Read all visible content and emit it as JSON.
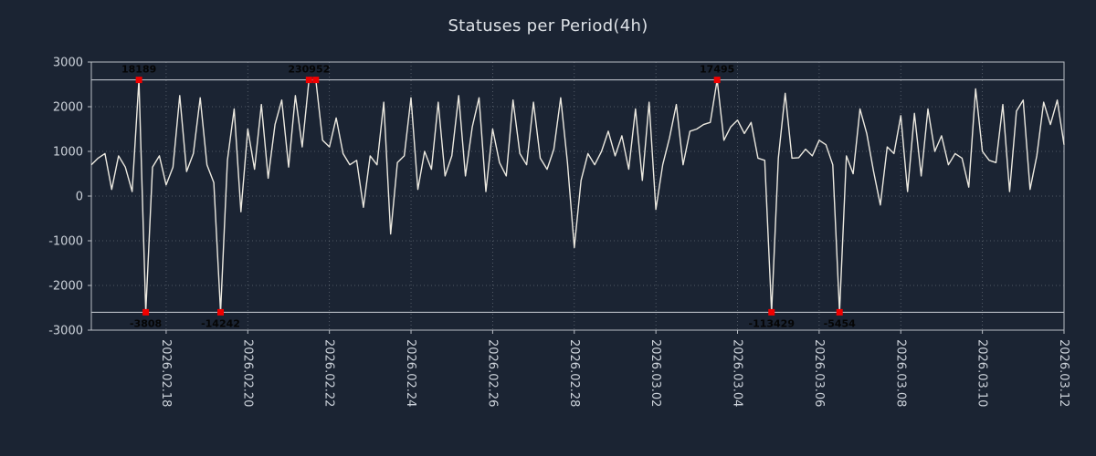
{
  "colors": {
    "background": "#1b2433",
    "line": "#ece9e0",
    "marker": "#f00000",
    "annotation_text": "#050505",
    "axis_text": "#ccd2da",
    "grid": "#9aa0a8",
    "frame": "#b9bec6"
  },
  "chart_data": {
    "type": "line",
    "title": "Statuses per Period(4h)",
    "x_start": "2026.02.16 04:00",
    "interval_hours": 4,
    "ylim": [
      -3000,
      3000
    ],
    "y_ticks": [
      3000,
      2000,
      1000,
      0,
      -1000,
      -2000,
      -3000
    ],
    "clip_value": 2600,
    "grid": "dotted",
    "x_tick_labels": [
      "2026.02.18",
      "2026.02.20",
      "2026.02.22",
      "2026.02.24",
      "2026.02.26",
      "2026.02.28",
      "2026.03.02",
      "2026.03.04",
      "2026.03.06",
      "2026.03.08",
      "2026.03.10",
      "2026.03.12"
    ],
    "x_tick_indices": [
      11,
      23,
      35,
      47,
      59,
      71,
      83,
      95,
      107,
      119,
      131,
      143
    ],
    "values": [
      700,
      850,
      950,
      150,
      900,
      650,
      100,
      2600,
      -2600,
      650,
      900,
      250,
      650,
      2250,
      550,
      950,
      2200,
      700,
      300,
      -2600,
      800,
      1950,
      -350,
      1500,
      600,
      2050,
      400,
      1600,
      2150,
      650,
      2250,
      1100,
      2600,
      2600,
      1250,
      1100,
      1750,
      950,
      700,
      800,
      -250,
      900,
      700,
      2100,
      -850,
      750,
      900,
      2200,
      150,
      1000,
      600,
      2100,
      450,
      900,
      2250,
      450,
      1550,
      2200,
      100,
      1500,
      750,
      450,
      2150,
      950,
      700,
      2100,
      850,
      600,
      1050,
      2200,
      750,
      -1150,
      350,
      950,
      700,
      1000,
      1450,
      900,
      1350,
      600,
      1950,
      350,
      2100,
      -300,
      700,
      1300,
      2050,
      700,
      1450,
      1500,
      1600,
      1650,
      2600,
      1250,
      1550,
      1700,
      1400,
      1650,
      850,
      800,
      -2600,
      850,
      2300,
      850,
      860,
      1050,
      900,
      1250,
      1150,
      700,
      -2600,
      900,
      500,
      1950,
      1400,
      550,
      -200,
      1100,
      950,
      1800,
      100,
      1850,
      450,
      1950,
      1000,
      1350,
      700,
      950,
      850,
      200,
      2400,
      1000,
      800,
      750,
      2050,
      100,
      1900,
      2150,
      150,
      900,
      2100,
      1600,
      2150,
      1150
    ],
    "annotations": [
      {
        "index": 7,
        "label": "18189",
        "value": 18189,
        "position": "top"
      },
      {
        "index": 8,
        "label": "-3808",
        "value": -3808,
        "position": "bottom"
      },
      {
        "index": 19,
        "label": "-14242",
        "value": -14242,
        "position": "bottom"
      },
      {
        "index": 32,
        "label": "230952",
        "value": 230952,
        "position": "top"
      },
      {
        "index": 33,
        "label": "",
        "value": null,
        "position": "top"
      },
      {
        "index": 92,
        "label": "17495",
        "value": 17495,
        "position": "top"
      },
      {
        "index": 100,
        "label": "-113429",
        "value": -113429,
        "position": "bottom"
      },
      {
        "index": 110,
        "label": "-5454",
        "value": -5454,
        "position": "bottom"
      }
    ]
  }
}
